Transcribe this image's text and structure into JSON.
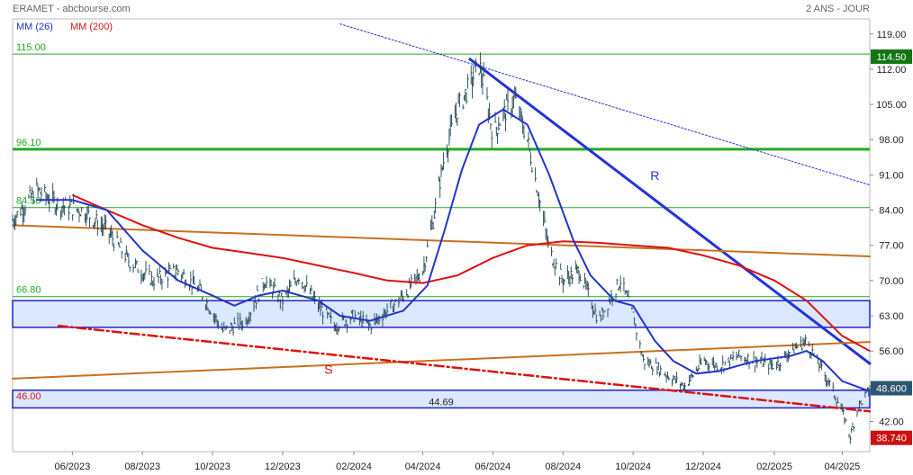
{
  "chart_data": {
    "type": "line",
    "title": "ERAMET - abcbourse.com",
    "period": "2 ANS - JOUR",
    "ylim": [
      36.0,
      122.0
    ],
    "y_ticks": [
      "119.00",
      "112.00",
      "105.00",
      "98.00",
      "91.00",
      "84.00",
      "77.00",
      "70.00",
      "63.00",
      "56.00",
      "49.00",
      "42.00"
    ],
    "x_ticks": [
      "06/2023",
      "08/2023",
      "10/2023",
      "12/2023",
      "02/2024",
      "04/2024",
      "06/2024",
      "08/2024",
      "10/2024",
      "12/2024",
      "02/2025",
      "04/2025"
    ],
    "x_range": [
      "2023-04-10",
      "2025-04-25"
    ],
    "grid": false,
    "legend": [
      {
        "name": "MM (26)",
        "color": "#2233cc"
      },
      {
        "name": "MM (200)",
        "color": "#dd1111"
      }
    ],
    "price_points": [
      [
        "2023-04-10",
        82
      ],
      [
        "2023-05-01",
        88
      ],
      [
        "2023-05-20",
        85
      ],
      [
        "2023-06-10",
        84
      ],
      [
        "2023-07-01",
        80
      ],
      [
        "2023-07-20",
        74
      ],
      [
        "2023-08-10",
        70
      ],
      [
        "2023-09-01",
        72
      ],
      [
        "2023-09-20",
        68
      ],
      [
        "2023-10-10",
        60
      ],
      [
        "2023-10-30",
        62
      ],
      [
        "2023-11-15",
        70
      ],
      [
        "2023-12-01",
        66
      ],
      [
        "2023-12-15",
        71
      ],
      [
        "2024-01-01",
        65
      ],
      [
        "2024-01-15",
        61
      ],
      [
        "2024-02-01",
        63
      ],
      [
        "2024-02-15",
        61
      ],
      [
        "2024-03-01",
        64
      ],
      [
        "2024-03-15",
        67
      ],
      [
        "2024-04-01",
        72
      ],
      [
        "2024-04-10",
        82
      ],
      [
        "2024-04-20",
        95
      ],
      [
        "2024-05-01",
        104
      ],
      [
        "2024-05-10",
        108
      ],
      [
        "2024-05-20",
        113
      ],
      [
        "2024-05-25",
        108
      ],
      [
        "2024-06-01",
        99
      ],
      [
        "2024-06-10",
        103
      ],
      [
        "2024-06-20",
        106
      ],
      [
        "2024-07-01",
        98
      ],
      [
        "2024-07-10",
        88
      ],
      [
        "2024-07-20",
        76
      ],
      [
        "2024-08-01",
        70
      ],
      [
        "2024-08-15",
        72
      ],
      [
        "2024-09-01",
        62
      ],
      [
        "2024-09-10",
        66
      ],
      [
        "2024-09-20",
        70
      ],
      [
        "2024-10-01",
        63
      ],
      [
        "2024-10-10",
        54
      ],
      [
        "2024-10-20",
        53
      ],
      [
        "2024-11-01",
        51
      ],
      [
        "2024-11-15",
        49
      ],
      [
        "2024-12-01",
        54
      ],
      [
        "2024-12-15",
        53
      ],
      [
        "2025-01-01",
        55
      ],
      [
        "2025-01-15",
        54
      ],
      [
        "2025-02-01",
        53
      ],
      [
        "2025-02-15",
        56
      ],
      [
        "2025-03-01",
        58
      ],
      [
        "2025-03-10",
        54
      ],
      [
        "2025-03-20",
        50
      ],
      [
        "2025-04-01",
        44
      ],
      [
        "2025-04-08",
        39
      ],
      [
        "2025-04-15",
        45
      ],
      [
        "2025-04-25",
        48.6
      ]
    ],
    "ma26_points": [
      [
        "2023-05-01",
        86
      ],
      [
        "2023-06-01",
        86
      ],
      [
        "2023-07-01",
        84
      ],
      [
        "2023-08-01",
        76
      ],
      [
        "2023-09-01",
        70
      ],
      [
        "2023-10-01",
        67
      ],
      [
        "2023-10-20",
        65
      ],
      [
        "2023-11-10",
        67
      ],
      [
        "2023-12-01",
        68
      ],
      [
        "2024-01-01",
        66
      ],
      [
        "2024-01-20",
        63
      ],
      [
        "2024-02-15",
        62
      ],
      [
        "2024-03-15",
        64
      ],
      [
        "2024-04-05",
        69
      ],
      [
        "2024-04-20",
        80
      ],
      [
        "2024-05-05",
        92
      ],
      [
        "2024-05-20",
        101
      ],
      [
        "2024-06-10",
        104
      ],
      [
        "2024-07-01",
        101
      ],
      [
        "2024-07-20",
        91
      ],
      [
        "2024-08-10",
        78
      ],
      [
        "2024-08-25",
        71
      ],
      [
        "2024-09-15",
        66
      ],
      [
        "2024-10-01",
        65
      ],
      [
        "2024-10-20",
        58
      ],
      [
        "2024-11-05",
        54
      ],
      [
        "2024-11-25",
        51.5
      ],
      [
        "2024-12-15",
        52
      ],
      [
        "2025-01-15",
        54
      ],
      [
        "2025-02-15",
        55
      ],
      [
        "2025-03-01",
        56
      ],
      [
        "2025-03-15",
        54
      ],
      [
        "2025-04-01",
        50
      ],
      [
        "2025-04-25",
        48
      ]
    ],
    "ma200_points": [
      [
        "2023-06-01",
        87
      ],
      [
        "2023-07-01",
        84
      ],
      [
        "2023-08-01",
        81
      ],
      [
        "2023-09-01",
        78.5
      ],
      [
        "2023-10-01",
        76.5
      ],
      [
        "2023-11-01",
        75.5
      ],
      [
        "2023-12-01",
        74.5
      ],
      [
        "2024-01-01",
        73
      ],
      [
        "2024-02-01",
        71.5
      ],
      [
        "2024-03-01",
        70
      ],
      [
        "2024-04-01",
        69.5
      ],
      [
        "2024-05-01",
        71
      ],
      [
        "2024-06-01",
        74.5
      ],
      [
        "2024-07-01",
        77
      ],
      [
        "2024-08-01",
        77.8
      ],
      [
        "2024-09-01",
        77.5
      ],
      [
        "2024-10-01",
        77
      ],
      [
        "2024-11-01",
        76.5
      ],
      [
        "2024-12-01",
        75
      ],
      [
        "2025-01-01",
        73
      ],
      [
        "2025-02-01",
        70
      ],
      [
        "2025-03-01",
        66
      ],
      [
        "2025-04-01",
        59
      ],
      [
        "2025-04-25",
        56
      ]
    ],
    "level_lines": [
      {
        "price": 115.0,
        "label": "115.00",
        "color": "#22aa22",
        "bold": false
      },
      {
        "price": 96.1,
        "label": "96.10",
        "color": "#22aa22",
        "bold": true
      },
      {
        "price": 84.5,
        "label": "84.50",
        "color": "#22aa22",
        "bold": false
      },
      {
        "price": 66.8,
        "label": "66.80",
        "color": "#22aa22",
        "bold": false
      }
    ],
    "zones": [
      {
        "from": 60.7,
        "to": 66.0,
        "label": "",
        "color": "#2222cc"
      },
      {
        "from": 44.69,
        "to": 48.2,
        "label": "46.00",
        "mid_label": "44.69",
        "color": "#2222cc"
      }
    ],
    "trendlines": [
      {
        "name": "R",
        "from": [
          "2024-05-12",
          114
        ],
        "to": [
          "2025-04-25",
          53.5
        ],
        "color": "#2233dd",
        "style": "solid-thick"
      },
      {
        "name": "",
        "from": [
          "2024-01-20",
          121
        ],
        "to": [
          "2025-04-25",
          89
        ],
        "color": "#2233dd",
        "style": "dotted"
      },
      {
        "name": "",
        "from": [
          "2023-04-10",
          81
        ],
        "to": [
          "2025-04-25",
          74.8
        ],
        "color": "#c87020",
        "style": "solid"
      },
      {
        "name": "",
        "from": [
          "2023-04-10",
          50.5
        ],
        "to": [
          "2025-04-25",
          57.8
        ],
        "color": "#c87020",
        "style": "solid"
      },
      {
        "name": "S",
        "from": [
          "2023-05-20",
          61
        ],
        "to": [
          "2025-04-25",
          44
        ],
        "color": "#dd1111",
        "style": "dashdot"
      }
    ],
    "text_labels": [
      {
        "text": "R",
        "at": [
          "2024-10-20",
          90
        ],
        "color": "#2233dd"
      },
      {
        "text": "S",
        "at": [
          "2024-01-10",
          51.5
        ],
        "color": "#dd1111"
      }
    ],
    "last_price": {
      "value": 48.6,
      "label": "48.600",
      "color": "#2e5570"
    },
    "right_tags": [
      {
        "value": 114.5,
        "label": "114.50",
        "color": "#117711"
      },
      {
        "value": 38.74,
        "label": "38.740",
        "color": "#cc1111"
      }
    ]
  }
}
